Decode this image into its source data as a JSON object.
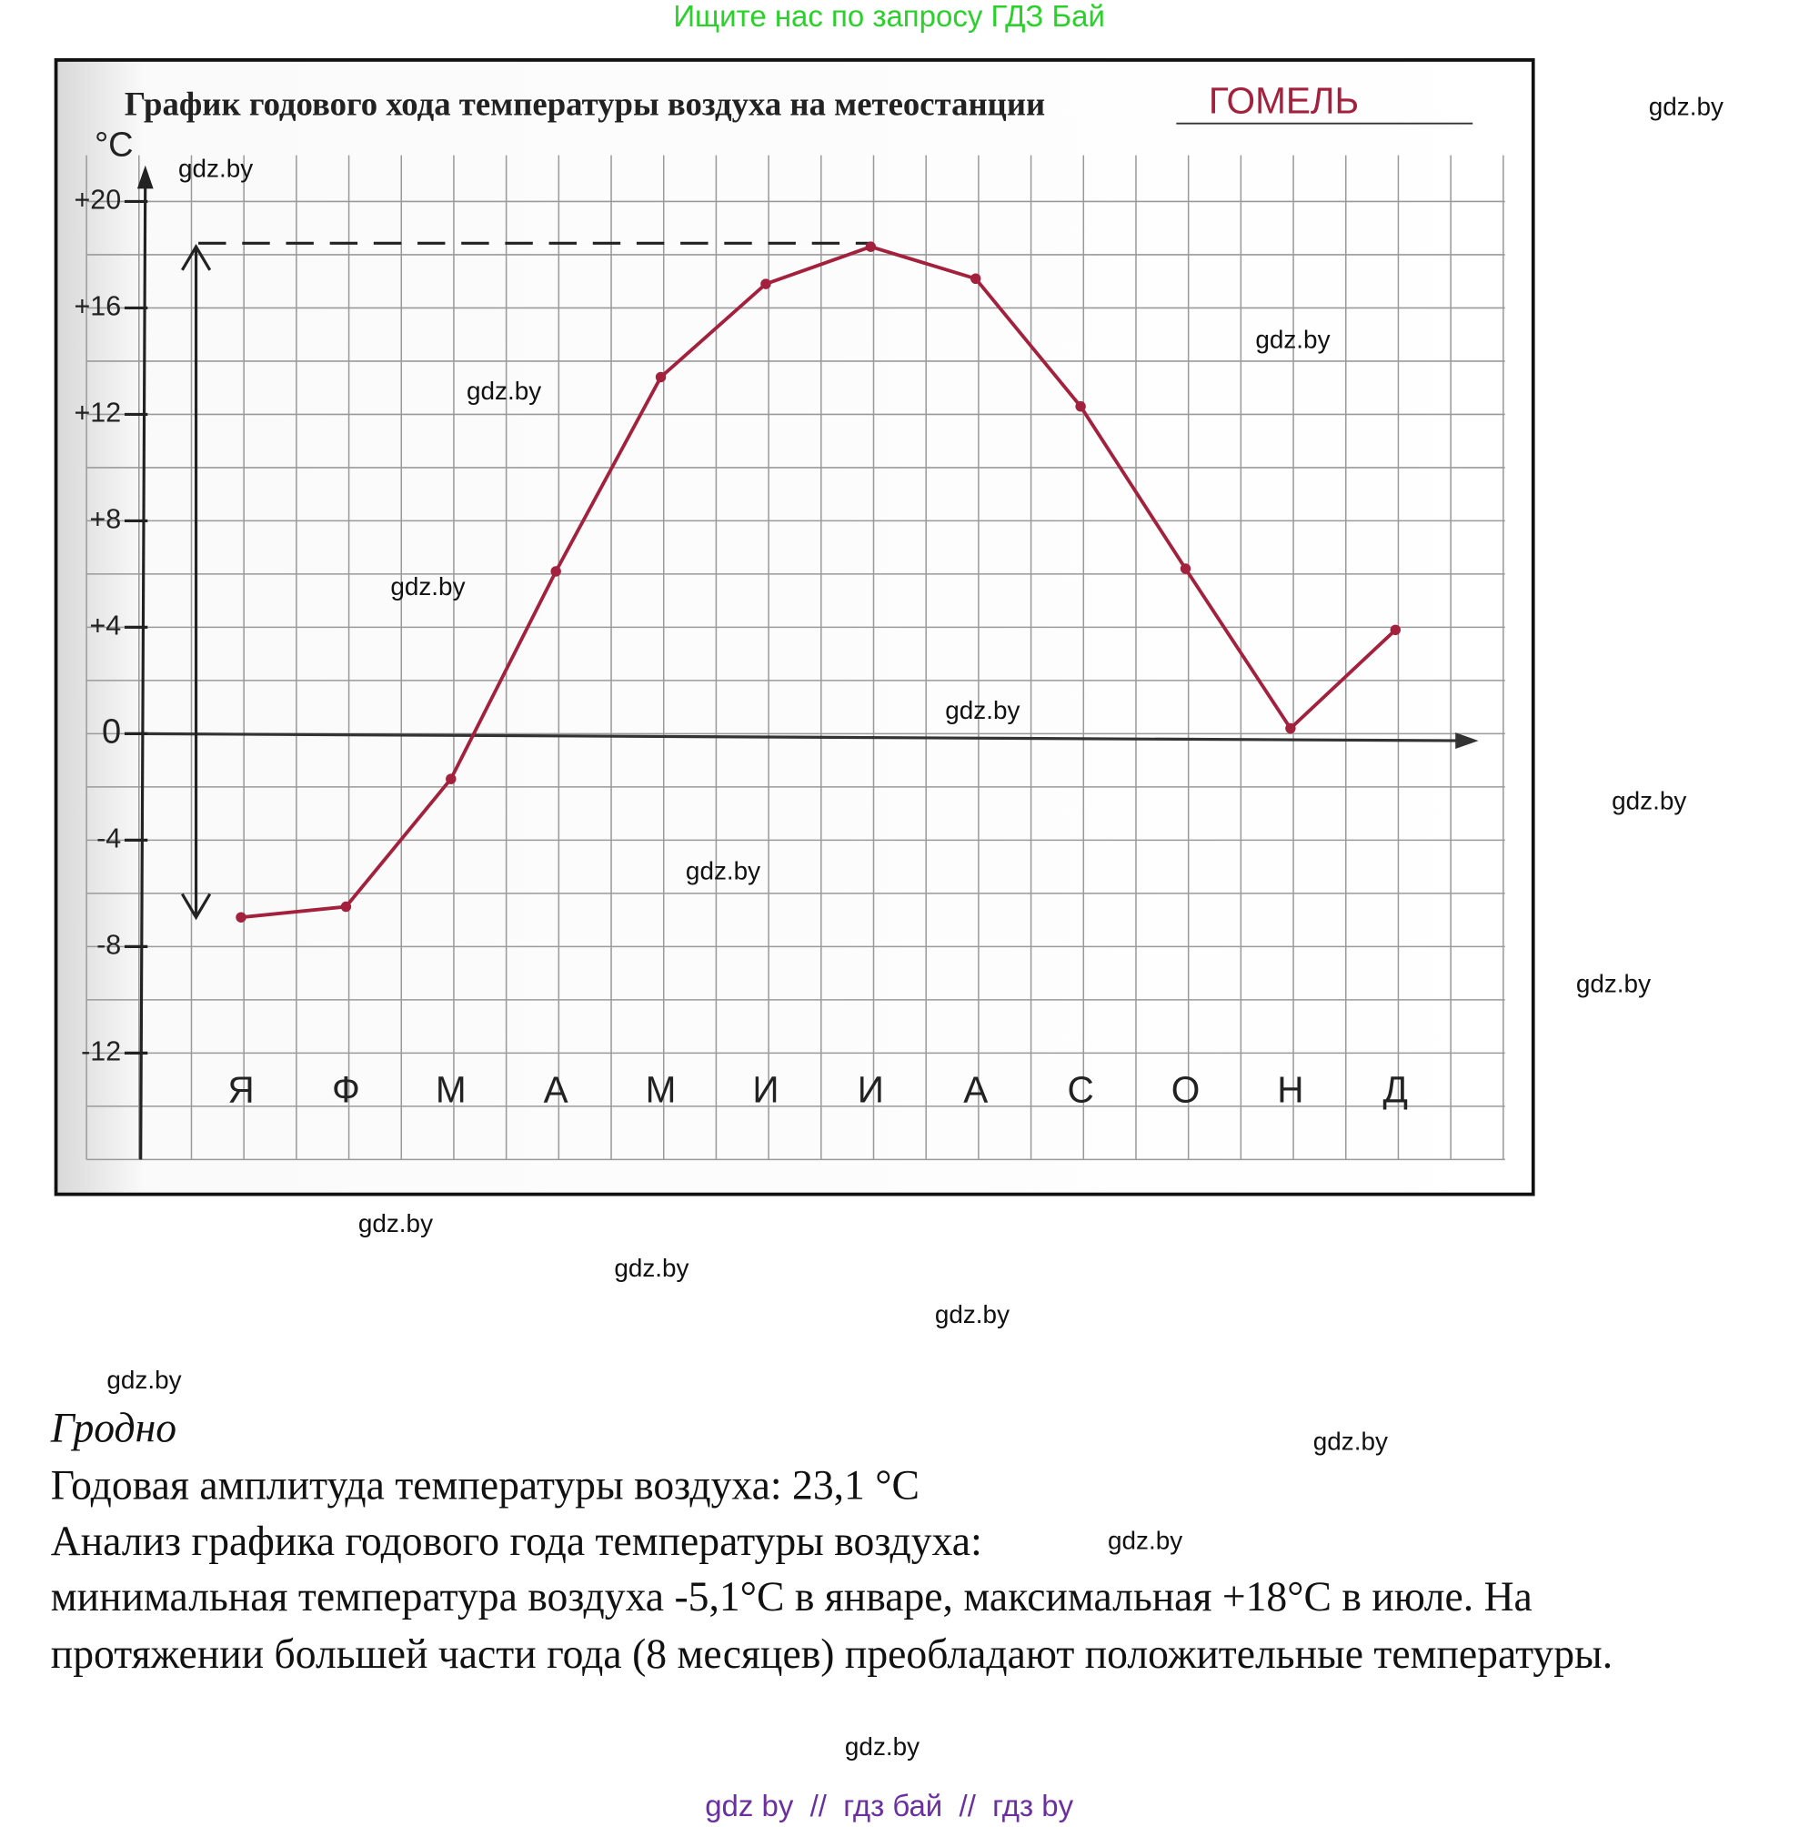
{
  "header": {
    "note": "Ищите нас по запросу ГДЗ Бай"
  },
  "chart_data": {
    "type": "line",
    "title": "График годового хода температуры воздуха на метеостанции",
    "station": "ГОМЕЛЬ",
    "y_label": "°C",
    "categories": [
      "Я",
      "Ф",
      "М",
      "А",
      "М",
      "И",
      "И",
      "А",
      "С",
      "О",
      "Н",
      "Д"
    ],
    "series": [
      {
        "color": "#a3213d",
        "values": [
          -6.9,
          -6.5,
          -1.7,
          6.1,
          13.4,
          16.9,
          18.3,
          17.1,
          12.3,
          6.2,
          0.2,
          3.9
        ]
      }
    ],
    "ylim": [
      -16,
      22
    ],
    "yticks": [
      {
        "value": 20,
        "label": "+20"
      },
      {
        "value": 16,
        "label": "+16"
      },
      {
        "value": 12,
        "label": "+12"
      },
      {
        "value": 8,
        "label": "+8"
      },
      {
        "value": 4,
        "label": "+4"
      },
      0,
      -4,
      -8,
      -12
    ],
    "grid": true
  },
  "text": {
    "city": "Гродно",
    "amplitude": "Годовая амплитуда температуры воздуха: 23,1 °C",
    "analysis_heading": "Анализ графика годового года температуры воздуха:",
    "analysis_lines": [
      "минимальная температура воздуха -5,1°C в январе, максимальная +18°C в июле. На",
      "протяжении большей части года (8 месяцев) преобладают положительные температуры."
    ]
  },
  "watermarks": [
    "gdz.by",
    "gdz.by",
    "gdz.by",
    "gdz.by",
    "gdz.by",
    "gdz.by",
    "gdz.by",
    "gdz.by",
    "gdz.by",
    "gdz.by",
    "gdz.by",
    "gdz.by",
    "gdz.by",
    "gdz.by",
    "gdz.by",
    "gdz.by"
  ],
  "footer": "gdz by  //  гдз бай  //  гдз by"
}
